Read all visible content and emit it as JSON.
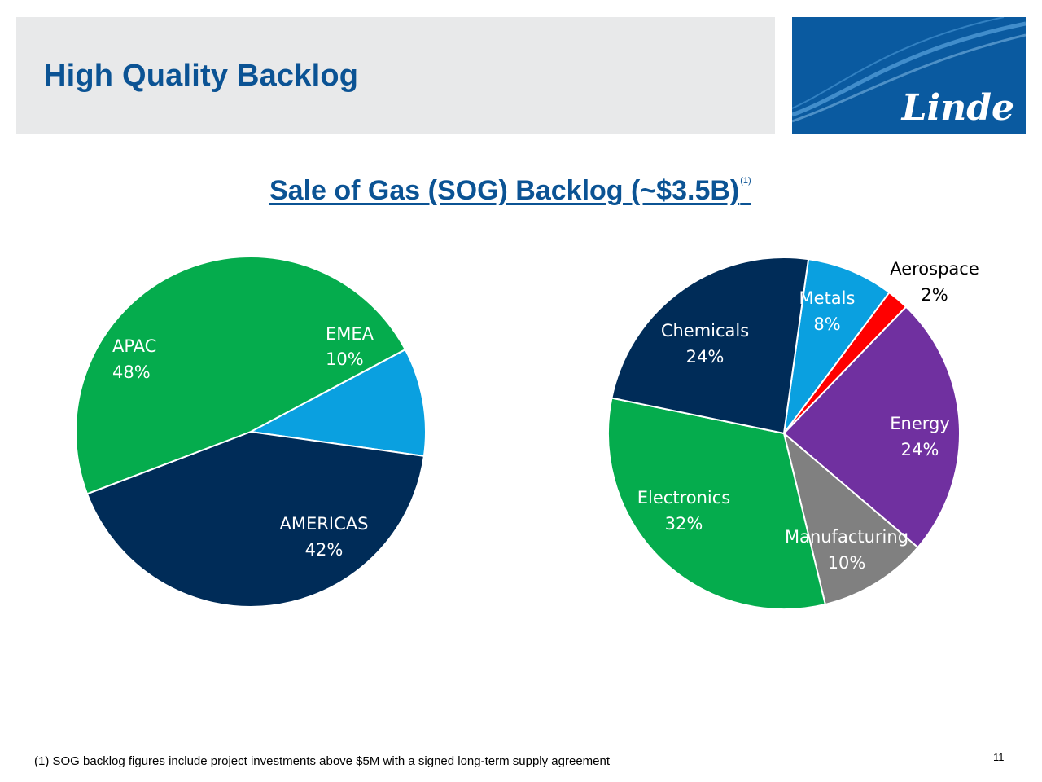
{
  "header": {
    "title": "High Quality Backlog",
    "logo_text": "Linde",
    "logo_color": "#0a5aa0"
  },
  "section_title": {
    "text": "Sale of Gas (SOG) Backlog (~$3.5B)",
    "superscript": "(1)"
  },
  "chart_data": [
    {
      "type": "pie",
      "title": "",
      "categories": [
        "EMEA",
        "AMERICAS",
        "APAC"
      ],
      "values": [
        10,
        42,
        48
      ],
      "value_labels": [
        "10%",
        "42%",
        "48%"
      ],
      "colors": [
        "#0aa0e0",
        "#002c58",
        "#05ac4d"
      ],
      "label_colors": [
        "#ffffff",
        "#ffffff",
        "#ffffff"
      ]
    },
    {
      "type": "pie",
      "title": "",
      "categories": [
        "Metals",
        "Aerospace",
        "Energy",
        "Manufacturing",
        "Electronics",
        "Chemicals"
      ],
      "values": [
        8,
        2,
        24,
        10,
        32,
        24
      ],
      "value_labels": [
        "8%",
        "2%",
        "24%",
        "10%",
        "32%",
        "24%"
      ],
      "colors": [
        "#0aa0e0",
        "#ff0000",
        "#7030a0",
        "#808080",
        "#05ac4d",
        "#002c58"
      ],
      "label_colors": [
        "#ffffff",
        "#000000",
        "#ffffff",
        "#ffffff",
        "#ffffff",
        "#ffffff"
      ]
    }
  ],
  "footnote": "(1) SOG backlog figures include project investments above $5M with a signed long-term supply agreement",
  "page_number": "11"
}
